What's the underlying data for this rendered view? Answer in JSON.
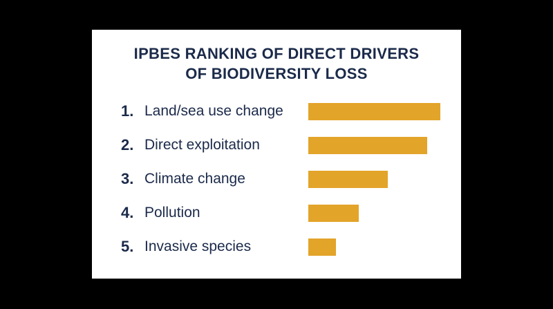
{
  "chart_data": {
    "type": "bar",
    "orientation": "horizontal",
    "title": "IPBES RANKING OF DIRECT DRIVERS OF BIODIVERSITY LOSS",
    "title_lines": [
      "IPBES RANKING OF DIRECT DRIVERS",
      "OF BIODIVERSITY LOSS"
    ],
    "ranks": [
      "1.",
      "2.",
      "3.",
      "4.",
      "5."
    ],
    "categories": [
      "Land/sea use change",
      "Direct exploitation",
      "Climate change",
      "Pollution",
      "Invasive species"
    ],
    "values": [
      5,
      4.5,
      3,
      1.9,
      1.05
    ],
    "xlim": [
      0,
      5
    ],
    "bar_color": "#e3a42a",
    "text_color": "#1b2a4a",
    "grid": false,
    "axes_shown": false
  }
}
